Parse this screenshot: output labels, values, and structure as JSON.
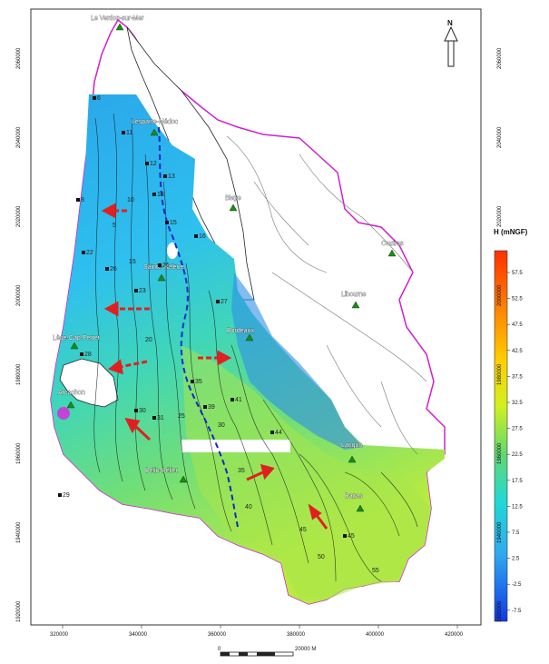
{
  "north_label": "N",
  "legend": {
    "title": "H (mNGF)",
    "ticks": [
      "57.5",
      "52.5",
      "47.5",
      "42.5",
      "37.5",
      "32.5",
      "27.5",
      "22.5",
      "17.5",
      "12.5",
      "7.5",
      "2.5",
      "-2.5",
      "-7.5"
    ],
    "colors": [
      "#ff3b00",
      "#ff7a00",
      "#ffb000",
      "#ffe000",
      "#d8f020",
      "#a0e840",
      "#60d870",
      "#30d0a0",
      "#20d8d8",
      "#20c8f0",
      "#30a8f0",
      "#2890f0",
      "#2070f0",
      "#1040e8"
    ]
  },
  "x_ticks": [
    "320000",
    "340000",
    "360000",
    "380000",
    "400000",
    "420000"
  ],
  "y_ticks": [
    "2060000",
    "2040000",
    "2020000",
    "2000000",
    "1980000",
    "1960000",
    "1940000",
    "1920000"
  ],
  "scale_bar": {
    "zero": "0",
    "end": "20000 M"
  },
  "places": [
    "Le Verdon-sur-Mer",
    "Lesparre-Médoc",
    "Blaye",
    "Coutras",
    "Libourne",
    "Sainte-Hélène",
    "Bordeaux",
    "Lège-Cap-Ferret",
    "Arcachon",
    "Langon",
    "Belin-Béliet",
    "Bazas"
  ],
  "contour_labels": [
    "5",
    "10",
    "15",
    "20",
    "25",
    "30",
    "35",
    "40",
    "45",
    "50",
    "55"
  ],
  "wells": [
    "6",
    "8",
    "11",
    "12",
    "13",
    "15",
    "16",
    "18",
    "21",
    "22",
    "23",
    "26",
    "27",
    "28",
    "29",
    "30",
    "31",
    "35",
    "39",
    "41",
    "44",
    "45"
  ]
}
